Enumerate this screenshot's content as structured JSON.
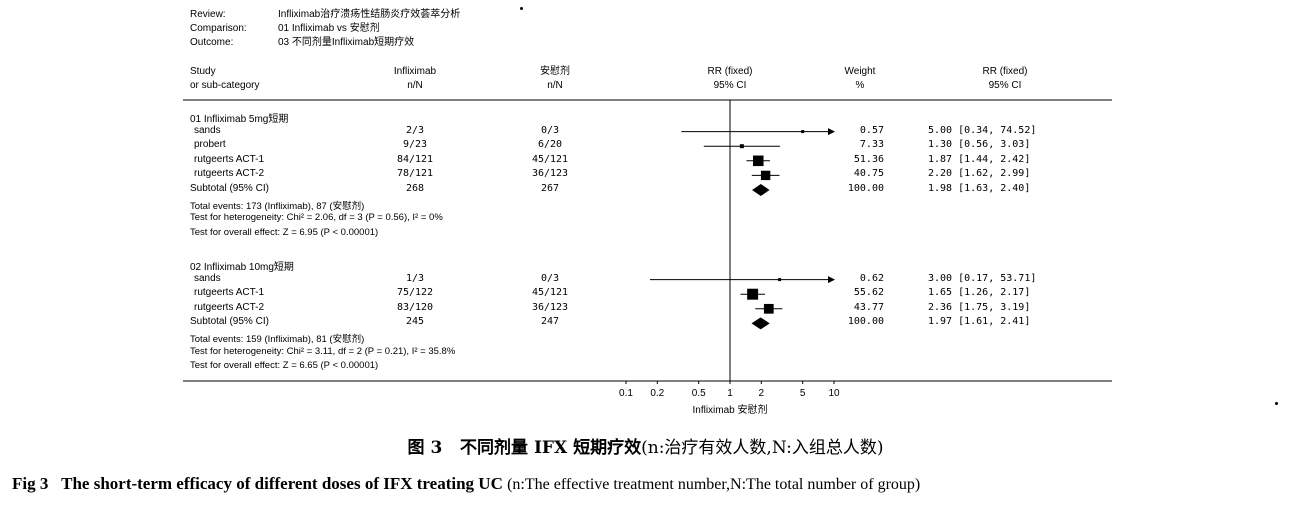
{
  "meta": {
    "review_label": "Review:",
    "review_value": "Infliximab治疗溃疡性结肠炎疗效荟萃分析",
    "comparison_label": "Comparison:",
    "comparison_value": "01 Infliximab vs 安慰剂",
    "outcome_label": "Outcome:",
    "outcome_value": "03 不同剂量Infliximab短期疗效"
  },
  "columns": {
    "study_1": "Study",
    "study_2": "or sub-category",
    "treat_1": "Infliximab",
    "treat_2": "n/N",
    "ctrl_1": "安慰剂",
    "ctrl_2": "n/N",
    "rr_1": "RR (fixed)",
    "rr_2": "95% CI",
    "weight_1": "Weight",
    "weight_2": "%",
    "rrci_1": "RR (fixed)",
    "rrci_2": "95% CI"
  },
  "chart_data": {
    "type": "forest",
    "x_scale": "log",
    "xlim": [
      0.1,
      10
    ],
    "x_ticks": [
      "0.1",
      "0.2",
      "0.5",
      "1",
      "2",
      "5",
      "10"
    ],
    "x_tick_values": [
      0.1,
      0.2,
      0.5,
      1,
      2,
      5,
      10
    ],
    "xlabel": "Infliximab   安慰剂",
    "groups": [
      {
        "title": "01 Infliximab 5mg短期",
        "studies": [
          {
            "name": "sands",
            "treat": "2/3",
            "ctrl": "0/3",
            "weight": "0.57",
            "ci_text": "5.00 [0.34, 74.52]",
            "rr": 5.0,
            "lo": 0.34,
            "hi": 74.52,
            "w": 0.57
          },
          {
            "name": "probert",
            "treat": "9/23",
            "ctrl": "6/20",
            "weight": "7.33",
            "ci_text": "1.30 [0.56, 3.03]",
            "rr": 1.3,
            "lo": 0.56,
            "hi": 3.03,
            "w": 7.33
          },
          {
            "name": "rutgeerts ACT-1",
            "treat": "84/121",
            "ctrl": "45/121",
            "weight": "51.36",
            "ci_text": "1.87 [1.44, 2.42]",
            "rr": 1.87,
            "lo": 1.44,
            "hi": 2.42,
            "w": 51.36
          },
          {
            "name": "rutgeerts ACT-2",
            "treat": "78/121",
            "ctrl": "36/123",
            "weight": "40.75",
            "ci_text": "2.20 [1.62, 2.99]",
            "rr": 2.2,
            "lo": 1.62,
            "hi": 2.99,
            "w": 40.75
          }
        ],
        "subtotal": {
          "name": "Subtotal (95% CI)",
          "treat": "268",
          "ctrl": "267",
          "weight": "100.00",
          "ci_text": "1.98 [1.63, 2.40]",
          "rr": 1.98,
          "lo": 1.63,
          "hi": 2.4
        },
        "events": "Total events: 173 (Infliximab), 87 (安慰剂)",
        "heterogeneity": "Test for heterogeneity: Chi² = 2.06, df = 3 (P = 0.56), I² = 0%",
        "overall": "Test for overall effect: Z = 6.95 (P < 0.00001)"
      },
      {
        "title": "02 Infliximab 10mg短期",
        "studies": [
          {
            "name": "sands",
            "treat": "1/3",
            "ctrl": "0/3",
            "weight": "0.62",
            "ci_text": "3.00 [0.17, 53.71]",
            "rr": 3.0,
            "lo": 0.17,
            "hi": 53.71,
            "w": 0.62
          },
          {
            "name": "rutgeerts ACT-1",
            "treat": "75/122",
            "ctrl": "45/121",
            "weight": "55.62",
            "ci_text": "1.65 [1.26, 2.17]",
            "rr": 1.65,
            "lo": 1.26,
            "hi": 2.17,
            "w": 55.62
          },
          {
            "name": "rutgeerts ACT-2",
            "treat": "83/120",
            "ctrl": "36/123",
            "weight": "43.77",
            "ci_text": "2.36 [1.75, 3.19]",
            "rr": 2.36,
            "lo": 1.75,
            "hi": 3.19,
            "w": 43.77
          }
        ],
        "subtotal": {
          "name": "Subtotal (95% CI)",
          "treat": "245",
          "ctrl": "247",
          "weight": "100.00",
          "ci_text": "1.97 [1.61, 2.41]",
          "rr": 1.97,
          "lo": 1.61,
          "hi": 2.41
        },
        "events": "Total events: 159 (Infliximab), 81 (安慰剂)",
        "heterogeneity": "Test for heterogeneity: Chi² = 3.11, df = 2 (P = 0.21), I² = 35.8%",
        "overall": "Test for overall effect: Z = 6.65 (P < 0.00001)"
      }
    ]
  },
  "caption": {
    "cn_label": "图 3",
    "cn_title": "不同剂量 IFX 短期疗效",
    "cn_note": "(n:治疗有效人数,N:入组总人数)",
    "en_label": "Fig 3",
    "en_title": "The short-term efficacy of different doses of IFX treating UC",
    "en_note": "(n:The effective treatment number,N:The total number of group)"
  }
}
